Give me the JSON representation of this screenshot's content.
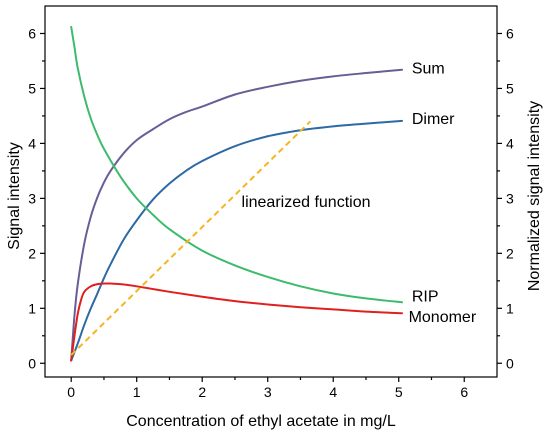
{
  "chart_data": {
    "type": "line",
    "xlabel": "Concentration of ethyl acetate in mg/L",
    "ylabel": "Signal intensity",
    "y2label": "Normalized signal intensity",
    "xlim": [
      -0.4,
      6.5
    ],
    "ylim": [
      -0.25,
      6.5
    ],
    "y2lim": [
      -0.25,
      6.5
    ],
    "xticks": [
      "0",
      "1",
      "2",
      "3",
      "4",
      "5",
      "6"
    ],
    "yticks": [
      "0",
      "1",
      "2",
      "3",
      "4",
      "5",
      "6"
    ],
    "y2ticks": [
      "0",
      "1",
      "2",
      "3",
      "4",
      "5",
      "6"
    ],
    "grid": false,
    "legend": "none",
    "series": [
      {
        "name": "Sum",
        "color": "#6a5d96",
        "x": [
          0.0,
          0.05,
          0.1,
          0.2,
          0.3,
          0.4,
          0.5,
          0.6,
          0.8,
          1.0,
          1.25,
          1.5,
          1.75,
          2.0,
          2.5,
          3.0,
          3.5,
          4.0,
          4.5,
          5.05
        ],
        "y": [
          0.05,
          0.87,
          1.44,
          2.18,
          2.67,
          3.02,
          3.29,
          3.5,
          3.82,
          4.06,
          4.26,
          4.44,
          4.57,
          4.67,
          4.89,
          5.03,
          5.14,
          5.22,
          5.28,
          5.34
        ]
      },
      {
        "name": "Dimer",
        "color": "#2d6aa3",
        "x": [
          0.0,
          0.1,
          0.2,
          0.3,
          0.4,
          0.5,
          0.6,
          0.8,
          1.0,
          1.25,
          1.5,
          1.75,
          2.0,
          2.5,
          3.0,
          3.5,
          4.0,
          4.5,
          5.05
        ],
        "y": [
          0.05,
          0.36,
          0.7,
          1.0,
          1.27,
          1.55,
          1.8,
          2.25,
          2.6,
          2.98,
          3.27,
          3.5,
          3.68,
          3.95,
          4.13,
          4.24,
          4.31,
          4.36,
          4.41
        ]
      },
      {
        "name": "RIP",
        "color": "#3dbb6c",
        "x": [
          0.0,
          0.05,
          0.1,
          0.2,
          0.3,
          0.4,
          0.5,
          0.75,
          1.0,
          1.25,
          1.5,
          2.0,
          2.5,
          3.0,
          3.5,
          4.0,
          4.5,
          5.05
        ],
        "y": [
          6.12,
          5.75,
          5.37,
          4.85,
          4.45,
          4.15,
          3.9,
          3.4,
          3.0,
          2.7,
          2.44,
          2.05,
          1.78,
          1.57,
          1.4,
          1.27,
          1.18,
          1.11
        ]
      },
      {
        "name": "Monomer",
        "color": "#e0201e",
        "x": [
          0.0,
          0.05,
          0.1,
          0.15,
          0.2,
          0.3,
          0.4,
          0.5,
          0.6,
          0.75,
          1.0,
          1.5,
          2.0,
          2.5,
          3.0,
          3.5,
          4.0,
          4.5,
          5.05
        ],
        "y": [
          0.05,
          0.5,
          0.9,
          1.15,
          1.3,
          1.4,
          1.44,
          1.45,
          1.45,
          1.44,
          1.4,
          1.3,
          1.21,
          1.13,
          1.07,
          1.02,
          0.98,
          0.94,
          0.91
        ]
      },
      {
        "name": "linearized function",
        "color": "#f5b521",
        "dashed": true,
        "x": [
          0.0,
          3.65
        ],
        "y": [
          0.15,
          4.4
        ]
      }
    ],
    "series_label_positions": {
      "Sum": [
        5.2,
        5.38
      ],
      "Dimer": [
        5.2,
        4.46
      ],
      "RIP": [
        5.2,
        1.23
      ],
      "Monomer": [
        5.15,
        0.86
      ],
      "linearized function": [
        2.6,
        2.95
      ]
    }
  }
}
